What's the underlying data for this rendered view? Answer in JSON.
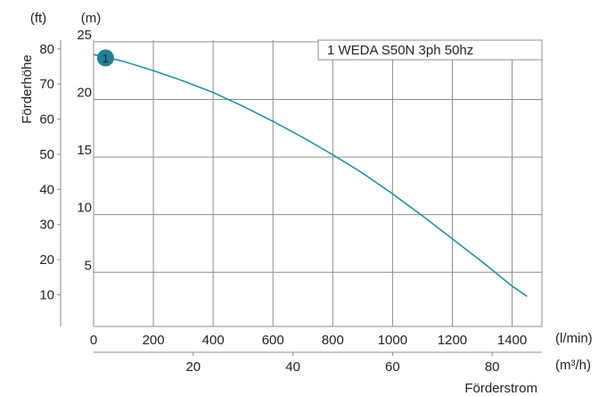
{
  "chart_data": {
    "type": "line",
    "ylabel_ft": "(ft)",
    "ylabel_m": "(m)",
    "ylabel": "Förderhöhe",
    "xlabel": "Förderstrom",
    "xunit_lmin": "(l/min)",
    "xunit_m3h": "(m³/h)",
    "x_ticks_lmin": [
      "0",
      "200",
      "400",
      "600",
      "800",
      "1000",
      "1200",
      "1400"
    ],
    "x_ticks_m3h": [
      "20",
      "40",
      "60",
      "80"
    ],
    "y_ticks_m": [
      "25",
      "20",
      "15",
      "10",
      "5"
    ],
    "y_ticks_ft": [
      "80",
      "70",
      "60",
      "50",
      "40",
      "30",
      "20",
      "10"
    ],
    "xlim_lmin": [
      0,
      1500
    ],
    "ylim_m": [
      3,
      25
    ],
    "grid": true,
    "legend_position": "top-right",
    "series": [
      {
        "name": "1 WEDA S50N 3ph 50hz",
        "marker_label": "1",
        "color": "#1a8aa0",
        "x": [
          0,
          100,
          200,
          300,
          400,
          500,
          600,
          700,
          800,
          900,
          1000,
          1100,
          1200,
          1300,
          1400,
          1450
        ],
        "y": [
          23.9,
          23.3,
          22.5,
          21.6,
          20.6,
          19.4,
          18.1,
          16.7,
          15.2,
          13.6,
          11.8,
          9.9,
          7.9,
          5.9,
          3.8,
          2.9
        ]
      }
    ]
  }
}
